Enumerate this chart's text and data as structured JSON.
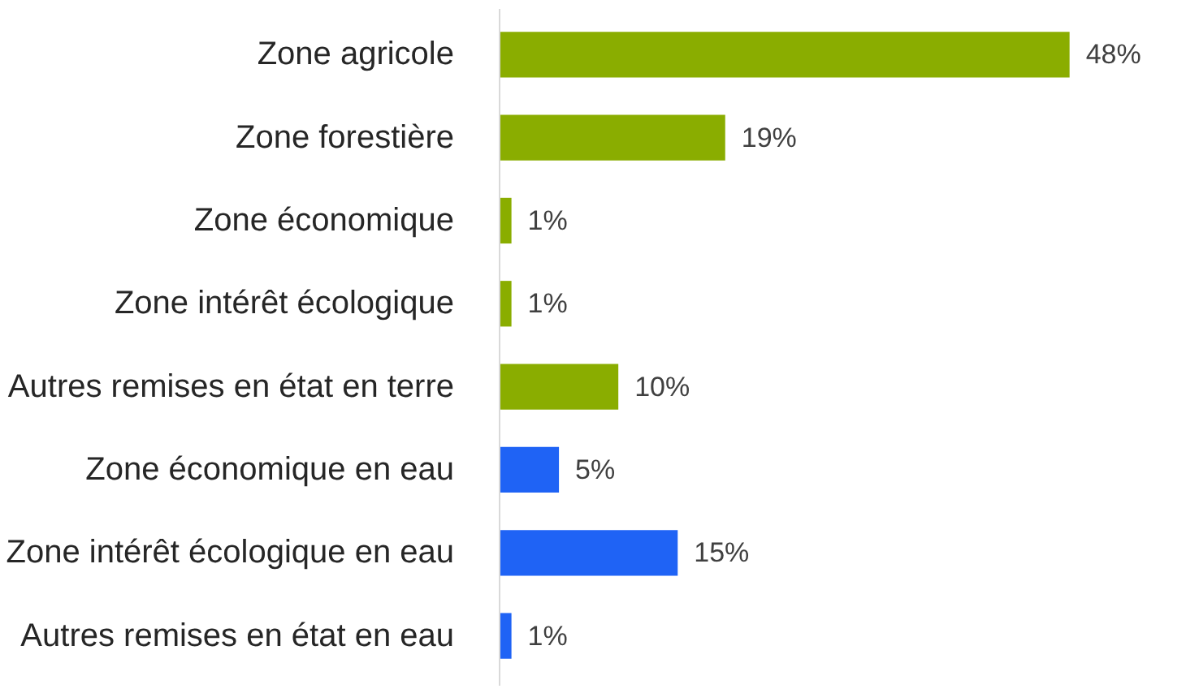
{
  "chart_data": {
    "type": "bar",
    "orientation": "horizontal",
    "categories": [
      "Zone agricole",
      "Zone forestière",
      "Zone économique",
      "Zone intérêt écologique",
      "Autres remises en état en terre",
      "Zone économique en eau",
      "Zone intérêt écologique en eau",
      "Autres remises en état en eau"
    ],
    "values": [
      48,
      19,
      1,
      1,
      10,
      5,
      15,
      1
    ],
    "colors": [
      "#8aad00",
      "#8aad00",
      "#8aad00",
      "#8aad00",
      "#8aad00",
      "#1f63f5",
      "#1f63f5",
      "#1f63f5"
    ],
    "value_labels": [
      "48%",
      "19%",
      "1%",
      "1%",
      "10%",
      "5%",
      "15%",
      "1%"
    ],
    "grid": false
  }
}
